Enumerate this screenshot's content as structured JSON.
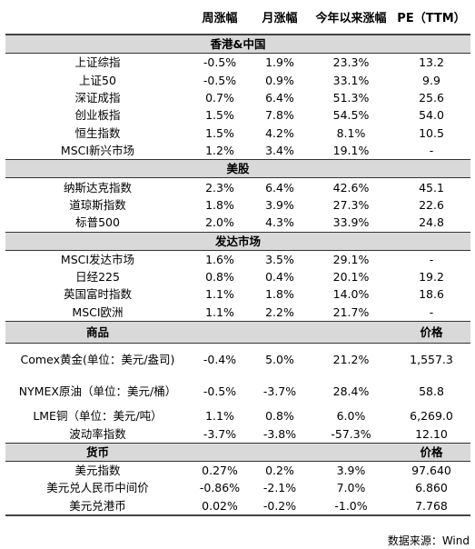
{
  "header": {
    "blank": "",
    "weekly": "周涨幅",
    "monthly": "月涨幅",
    "ytd": "今年以来涨幅",
    "pe": "PE（TTM）"
  },
  "sections": [
    {
      "title": "香港&中国",
      "rows": [
        {
          "name": "上证综指",
          "w": "-0.5%",
          "m": "1.9%",
          "y": "23.3%",
          "v": "13.2"
        },
        {
          "name": "上证50",
          "w": "-0.5%",
          "m": "0.9%",
          "y": "33.1%",
          "v": "9.9"
        },
        {
          "name": "深证成指",
          "w": "0.7%",
          "m": "6.4%",
          "y": "51.3%",
          "v": "25.6"
        },
        {
          "name": "创业板指",
          "w": "1.5%",
          "m": "7.8%",
          "y": "54.5%",
          "v": "54.0"
        },
        {
          "name": "恒生指数",
          "w": "1.5%",
          "m": "4.2%",
          "y": "8.1%",
          "v": "10.5"
        },
        {
          "name": "MSCI新兴市场",
          "w": "1.2%",
          "m": "3.4%",
          "y": "19.1%",
          "v": "-"
        }
      ]
    },
    {
      "title": "美股",
      "rows": [
        {
          "name": "纳斯达克指数",
          "w": "2.3%",
          "m": "6.4%",
          "y": "42.6%",
          "v": "45.1"
        },
        {
          "name": "道琼斯指数",
          "w": "1.8%",
          "m": "3.9%",
          "y": "27.3%",
          "v": "22.6"
        },
        {
          "name": "标普500",
          "w": "2.0%",
          "m": "4.3%",
          "y": "33.9%",
          "v": "24.8"
        }
      ]
    },
    {
      "title": "发达市场",
      "rows": [
        {
          "name": "MSCI发达市场",
          "w": "1.6%",
          "m": "3.5%",
          "y": "29.1%",
          "v": "-"
        },
        {
          "name": "日经225",
          "w": "0.8%",
          "m": "0.4%",
          "y": "20.1%",
          "v": "19.2"
        },
        {
          "name": "英国富时指数",
          "w": "1.1%",
          "m": "1.8%",
          "y": "14.0%",
          "v": "18.6"
        },
        {
          "name": "MSCI欧洲",
          "w": "1.1%",
          "m": "2.2%",
          "y": "21.7%",
          "v": "-"
        }
      ]
    },
    {
      "title": "商品",
      "value_header": "价格",
      "rows": [
        {
          "name": "Comex黄金(单位：美元/盎司)",
          "w": "-0.4%",
          "m": "5.0%",
          "y": "21.2%",
          "v": "1,557.3"
        },
        {
          "name": "NYMEX原油（单位：美元/桶）",
          "w": "-0.5%",
          "m": "-3.7%",
          "y": "28.4%",
          "v": "58.8"
        },
        {
          "name": "LME铜（单位：美元/吨）",
          "w": "1.1%",
          "m": "0.8%",
          "y": "6.0%",
          "v": "6,269.0"
        },
        {
          "name": "波动率指数",
          "w": "-3.7%",
          "m": "-3.8%",
          "y": "-57.3%",
          "v": "12.10"
        }
      ]
    },
    {
      "title": "货币",
      "value_header": "价格",
      "rows": [
        {
          "name": "美元指数",
          "w": "0.27%",
          "m": "0.2%",
          "y": "3.9%",
          "v": "97.640"
        },
        {
          "name": "美元兑人民币中间价",
          "w": "-0.86%",
          "m": "-2.1%",
          "y": "7.0%",
          "v": "6.860"
        },
        {
          "name": "美元兑港币",
          "w": "0.02%",
          "m": "-0.2%",
          "y": "-1.0%",
          "v": "7.768"
        }
      ]
    }
  ],
  "source": "数据来源：Wind"
}
